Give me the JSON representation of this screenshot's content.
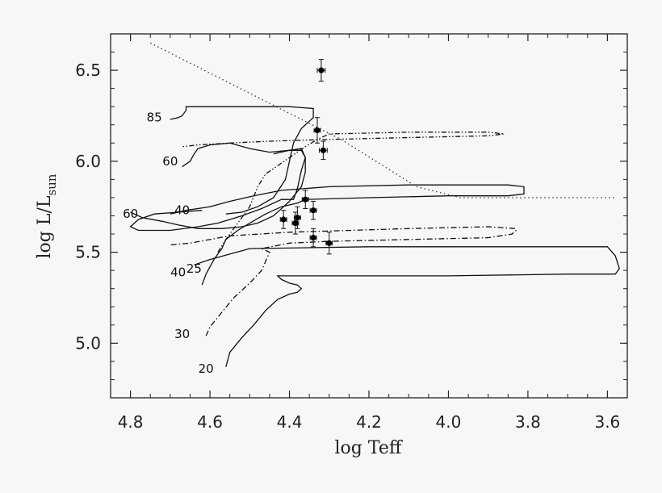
{
  "chart_data": {
    "type": "scatter",
    "xlabel": "log Teff",
    "ylabel_main": "log L/L",
    "ylabel_sub": "sun",
    "xlim": [
      4.85,
      3.55
    ],
    "ylim": [
      4.7,
      6.7
    ],
    "x_reversed": true,
    "x_ticks": [
      4.8,
      4.6,
      4.4,
      4.2,
      4.0,
      3.8,
      3.6
    ],
    "x_tick_labels": [
      "4.8",
      "4.6",
      "4.4",
      "4.2",
      "4.0",
      "3.8",
      "3.6"
    ],
    "y_ticks": [
      5.0,
      5.5,
      6.0,
      6.5
    ],
    "y_tick_labels": [
      "5.0",
      "5.5",
      "6.0",
      "6.5"
    ],
    "grid": false,
    "points": [
      {
        "x": 4.32,
        "y": 6.5,
        "xerr": 0.01,
        "yerr": 0.06
      },
      {
        "x": 4.33,
        "y": 6.17,
        "xerr": 0.008,
        "yerr": 0.07
      },
      {
        "x": 4.315,
        "y": 6.06,
        "xerr": 0.01,
        "yerr": 0.05
      },
      {
        "x": 4.36,
        "y": 5.79,
        "xerr": 0.008,
        "yerr": 0.05
      },
      {
        "x": 4.415,
        "y": 5.68,
        "xerr": 0.008,
        "yerr": 0.05
      },
      {
        "x": 4.38,
        "y": 5.69,
        "xerr": 0.008,
        "yerr": 0.06
      },
      {
        "x": 4.385,
        "y": 5.66,
        "xerr": 0.008,
        "yerr": 0.06
      },
      {
        "x": 4.34,
        "y": 5.73,
        "xerr": 0.008,
        "yerr": 0.05
      },
      {
        "x": 4.34,
        "y": 5.58,
        "xerr": 0.008,
        "yerr": 0.05
      },
      {
        "x": 4.3,
        "y": 5.55,
        "xerr": 0.008,
        "yerr": 0.06
      }
    ],
    "limit_line": [
      [
        4.75,
        6.65
      ],
      [
        4.27,
        6.12
      ],
      [
        4.08,
        5.86
      ],
      [
        3.97,
        5.8
      ],
      [
        3.58,
        5.8
      ]
    ],
    "tracks": [
      {
        "style": "solid",
        "points": [
          [
            4.56,
            4.87
          ],
          [
            4.55,
            4.95
          ],
          [
            4.52,
            5.03
          ],
          [
            4.49,
            5.1
          ],
          [
            4.46,
            5.18
          ],
          [
            4.43,
            5.24
          ],
          [
            4.4,
            5.27
          ],
          [
            4.38,
            5.28
          ],
          [
            4.37,
            5.3
          ],
          [
            4.38,
            5.32
          ],
          [
            4.4,
            5.33
          ],
          [
            4.42,
            5.35
          ],
          [
            4.43,
            5.37
          ],
          [
            4.3,
            5.37
          ],
          [
            4.0,
            5.37
          ],
          [
            3.7,
            5.38
          ],
          [
            3.58,
            5.38
          ],
          [
            3.57,
            5.41
          ],
          [
            3.58,
            5.48
          ],
          [
            3.6,
            5.53
          ],
          [
            3.9,
            5.53
          ],
          [
            4.2,
            5.53
          ],
          [
            4.5,
            5.52
          ],
          [
            4.6,
            5.46
          ],
          [
            4.64,
            5.43
          ]
        ]
      },
      {
        "style": "dash",
        "points": [
          [
            4.61,
            5.04
          ],
          [
            4.6,
            5.09
          ],
          [
            4.57,
            5.17
          ],
          [
            4.54,
            5.25
          ],
          [
            4.5,
            5.33
          ],
          [
            4.47,
            5.4
          ],
          [
            4.46,
            5.45
          ],
          [
            4.45,
            5.5
          ],
          [
            4.47,
            5.52
          ],
          [
            4.4,
            5.55
          ],
          [
            4.3,
            5.56
          ],
          [
            4.1,
            5.57
          ],
          [
            3.9,
            5.58
          ],
          [
            3.84,
            5.6
          ],
          [
            3.83,
            5.62
          ],
          [
            3.83,
            5.63
          ],
          [
            3.9,
            5.64
          ],
          [
            4.1,
            5.63
          ],
          [
            4.4,
            5.61
          ],
          [
            4.55,
            5.59
          ],
          [
            4.65,
            5.55
          ],
          [
            4.7,
            5.54
          ]
        ]
      },
      {
        "style": "solid",
        "points": [
          [
            4.62,
            5.32
          ],
          [
            4.61,
            5.38
          ],
          [
            4.59,
            5.46
          ],
          [
            4.57,
            5.52
          ],
          [
            4.56,
            5.57
          ],
          [
            4.53,
            5.62
          ],
          [
            4.5,
            5.66
          ],
          [
            4.46,
            5.71
          ],
          [
            4.42,
            5.75
          ],
          [
            4.38,
            5.77
          ],
          [
            4.36,
            5.79
          ],
          [
            4.2,
            5.8
          ],
          [
            4.0,
            5.81
          ],
          [
            3.85,
            5.81
          ],
          [
            3.81,
            5.82
          ],
          [
            3.81,
            5.86
          ],
          [
            3.85,
            5.87
          ],
          [
            4.1,
            5.87
          ],
          [
            4.3,
            5.86
          ],
          [
            4.42,
            5.84
          ],
          [
            4.49,
            5.81
          ],
          [
            4.55,
            5.78
          ],
          [
            4.6,
            5.75
          ],
          [
            4.66,
            5.73
          ],
          [
            4.7,
            5.71
          ]
        ]
      },
      {
        "style": "dashdot",
        "points": [
          [
            4.58,
            5.5
          ],
          [
            4.56,
            5.57
          ],
          [
            4.53,
            5.66
          ],
          [
            4.5,
            5.75
          ],
          [
            4.48,
            5.86
          ],
          [
            4.46,
            5.93
          ],
          [
            4.44,
            5.96
          ],
          [
            4.4,
            6.02
          ],
          [
            4.36,
            6.08
          ],
          [
            4.33,
            6.12
          ],
          [
            4.3,
            6.15
          ],
          [
            4.1,
            6.16
          ],
          [
            3.9,
            6.16
          ],
          [
            3.86,
            6.15
          ],
          [
            3.9,
            6.14
          ],
          [
            4.1,
            6.13
          ],
          [
            4.3,
            6.12
          ],
          [
            4.45,
            6.11
          ],
          [
            4.55,
            6.1
          ],
          [
            4.63,
            6.09
          ],
          [
            4.67,
            6.08
          ]
        ]
      },
      {
        "style": "solid",
        "points": [
          [
            4.67,
            5.97
          ],
          [
            4.65,
            6.0
          ],
          [
            4.64,
            6.04
          ],
          [
            4.63,
            6.07
          ],
          [
            4.6,
            6.09
          ],
          [
            4.55,
            6.1
          ],
          [
            4.5,
            6.07
          ],
          [
            4.45,
            6.05
          ],
          [
            4.4,
            6.06
          ],
          [
            4.37,
            6.07
          ],
          [
            4.36,
            6.02
          ],
          [
            4.37,
            5.95
          ],
          [
            4.38,
            5.85
          ],
          [
            4.39,
            5.79
          ],
          [
            4.42,
            5.79
          ],
          [
            4.47,
            5.74
          ],
          [
            4.52,
            5.7
          ],
          [
            4.58,
            5.66
          ],
          [
            4.63,
            5.64
          ],
          [
            4.7,
            5.62
          ],
          [
            4.78,
            5.62
          ],
          [
            4.8,
            5.64
          ],
          [
            4.78,
            5.68
          ],
          [
            4.74,
            5.71
          ],
          [
            4.68,
            5.72
          ],
          [
            4.62,
            5.73
          ]
        ]
      },
      {
        "style": "solid",
        "points": [
          [
            4.7,
            6.23
          ],
          [
            4.68,
            6.24
          ],
          [
            4.67,
            6.25
          ],
          [
            4.66,
            6.28
          ],
          [
            4.66,
            6.3
          ],
          [
            4.55,
            6.3
          ],
          [
            4.4,
            6.3
          ],
          [
            4.34,
            6.29
          ],
          [
            4.34,
            6.24
          ],
          [
            4.37,
            6.18
          ],
          [
            4.39,
            6.1
          ],
          [
            4.4,
            6.0
          ],
          [
            4.41,
            5.9
          ],
          [
            4.44,
            5.8
          ],
          [
            4.48,
            5.75
          ],
          [
            4.52,
            5.72
          ],
          [
            4.56,
            5.71
          ]
        ]
      },
      {
        "style": "solid",
        "points": [
          [
            4.8,
            5.72
          ],
          [
            4.77,
            5.69
          ],
          [
            4.72,
            5.67
          ],
          [
            4.68,
            5.65
          ],
          [
            4.63,
            5.63
          ],
          [
            4.57,
            5.63
          ],
          [
            4.52,
            5.64
          ],
          [
            4.48,
            5.66
          ],
          [
            4.44,
            5.7
          ],
          [
            4.4,
            5.78
          ],
          [
            4.37,
            5.86
          ],
          [
            4.36,
            5.94
          ],
          [
            4.36,
            6.02
          ],
          [
            4.37,
            6.06
          ],
          [
            4.4,
            6.06
          ],
          [
            4.44,
            6.04
          ]
        ]
      }
    ],
    "track_labels": [
      {
        "text": "85",
        "x": 4.74,
        "y": 6.24
      },
      {
        "text": "60",
        "x": 4.7,
        "y": 6.0
      },
      {
        "text": "40",
        "x": 4.67,
        "y": 5.73
      },
      {
        "text": "60",
        "x": 4.8,
        "y": 5.71
      },
      {
        "text": "40",
        "x": 4.68,
        "y": 5.39
      },
      {
        "text": "25",
        "x": 4.64,
        "y": 5.41
      },
      {
        "text": "30",
        "x": 4.67,
        "y": 5.05
      },
      {
        "text": "20",
        "x": 4.61,
        "y": 4.86
      }
    ]
  }
}
